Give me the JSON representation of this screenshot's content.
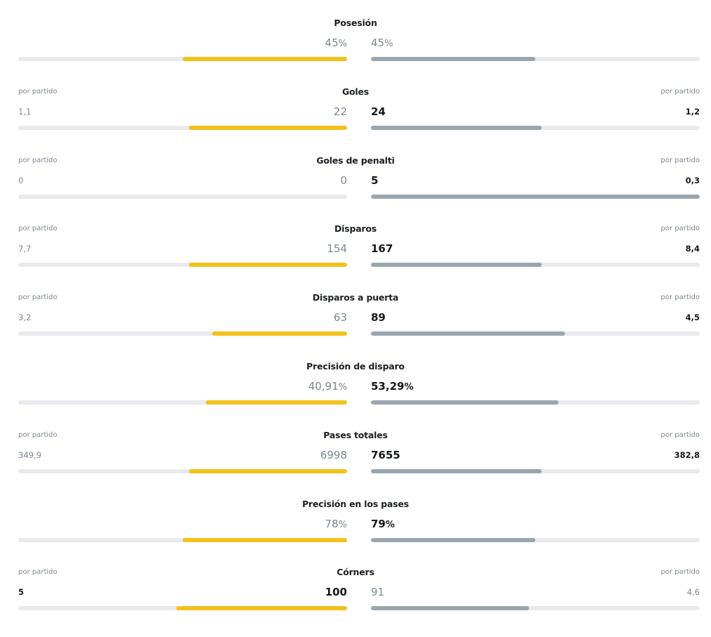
{
  "per_match_label": "por partido",
  "colors": {
    "home_bar": "#f2c21b",
    "away_bar": "#9aa6af",
    "track": "#e9eaee"
  },
  "stats": [
    {
      "title": "Posesión",
      "has_per_match": false,
      "home": {
        "value": "45",
        "unit": "%",
        "bar_fraction": 0.5,
        "bold": false
      },
      "away": {
        "value": "45",
        "unit": "%",
        "bar_fraction": 0.5,
        "bold": false
      }
    },
    {
      "title": "Goles",
      "has_per_match": true,
      "home": {
        "value": "22",
        "unit": "",
        "per_match": "1,1",
        "bar_fraction": 0.48,
        "bold": false
      },
      "away": {
        "value": "24",
        "unit": "",
        "per_match": "1,2",
        "bar_fraction": 0.52,
        "bold": true
      }
    },
    {
      "title": "Goles de penalti",
      "has_per_match": true,
      "home": {
        "value": "0",
        "unit": "",
        "per_match": "0",
        "bar_fraction": 0.0,
        "bold": false
      },
      "away": {
        "value": "5",
        "unit": "",
        "per_match": "0,3",
        "bar_fraction": 1.0,
        "bold": true
      }
    },
    {
      "title": "Disparos",
      "has_per_match": true,
      "home": {
        "value": "154",
        "unit": "",
        "per_match": "7,7",
        "bar_fraction": 0.48,
        "bold": false
      },
      "away": {
        "value": "167",
        "unit": "",
        "per_match": "8,4",
        "bar_fraction": 0.52,
        "bold": true
      }
    },
    {
      "title": "Disparos a puerta",
      "has_per_match": true,
      "home": {
        "value": "63",
        "unit": "",
        "per_match": "3,2",
        "bar_fraction": 0.41,
        "bold": false
      },
      "away": {
        "value": "89",
        "unit": "",
        "per_match": "4,5",
        "bar_fraction": 0.59,
        "bold": true
      }
    },
    {
      "title": "Precisión de disparo",
      "has_per_match": false,
      "home": {
        "value": "40,91",
        "unit": "%",
        "bar_fraction": 0.43,
        "bold": false
      },
      "away": {
        "value": "53,29",
        "unit": "%",
        "bar_fraction": 0.57,
        "bold": true
      }
    },
    {
      "title": "Pases totales",
      "has_per_match": true,
      "home": {
        "value": "6998",
        "unit": "",
        "per_match": "349,9",
        "bar_fraction": 0.48,
        "bold": false
      },
      "away": {
        "value": "7655",
        "unit": "",
        "per_match": "382,8",
        "bar_fraction": 0.52,
        "bold": true
      }
    },
    {
      "title": "Precisión en los pases",
      "has_per_match": false,
      "home": {
        "value": "78",
        "unit": "%",
        "bar_fraction": 0.5,
        "bold": false
      },
      "away": {
        "value": "79",
        "unit": "%",
        "bar_fraction": 0.5,
        "bold": true
      }
    },
    {
      "title": "Córners",
      "has_per_match": true,
      "home": {
        "value": "100",
        "unit": "",
        "per_match": "5",
        "bar_fraction": 0.52,
        "bold": true
      },
      "away": {
        "value": "91",
        "unit": "",
        "per_match": "4,6",
        "bar_fraction": 0.48,
        "bold": false
      }
    }
  ]
}
